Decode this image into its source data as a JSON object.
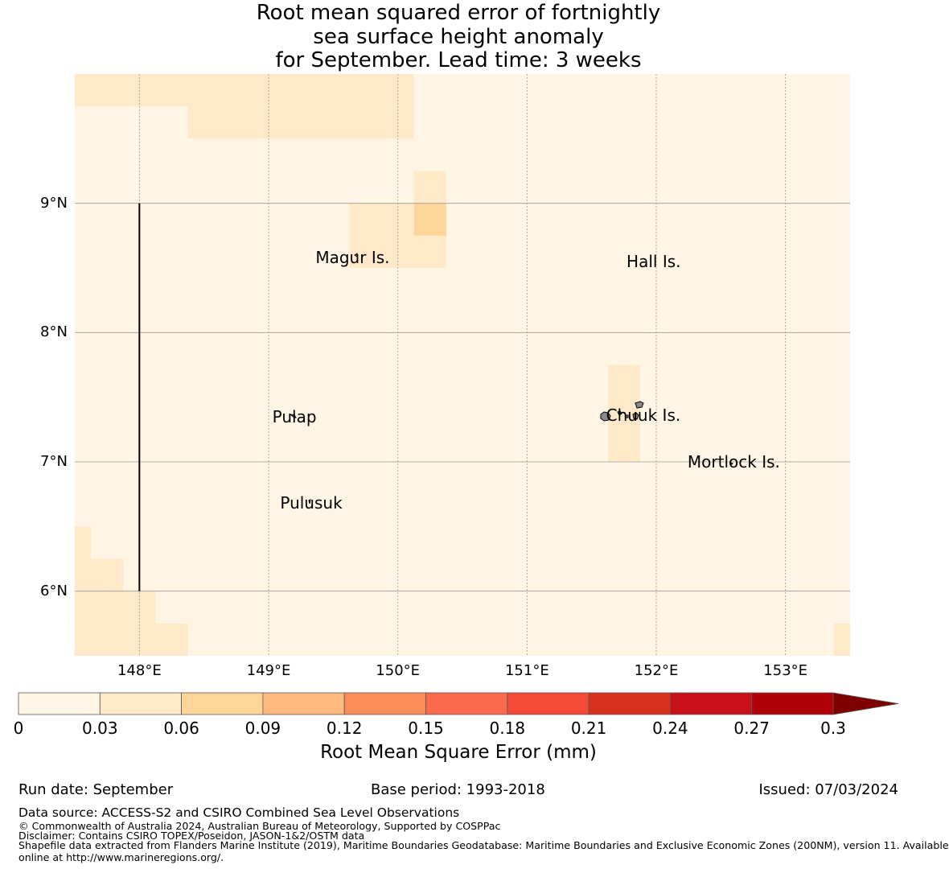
{
  "title": {
    "line1": "Root mean squared error of fortnightly",
    "line2": "sea surface height anomaly",
    "line3": "for September. Lead time: 3 weeks"
  },
  "map": {
    "lon_range": [
      147.5,
      153.5
    ],
    "lat_range": [
      5.5,
      10.0
    ],
    "lat_labels": [
      {
        "lat": 9,
        "text": "9°N"
      },
      {
        "lat": 8,
        "text": "8°N"
      },
      {
        "lat": 7,
        "text": "7°N"
      },
      {
        "lat": 6,
        "text": "6°N"
      }
    ],
    "lon_labels": [
      {
        "lon": 148,
        "text": "148°E"
      },
      {
        "lon": 149,
        "text": "149°E"
      },
      {
        "lon": 150,
        "text": "150°E"
      },
      {
        "lon": 151,
        "text": "151°E"
      },
      {
        "lon": 152,
        "text": "152°E"
      },
      {
        "lon": 153,
        "text": "153°E"
      }
    ],
    "places": [
      {
        "name": "Magur Is.",
        "lon": 149.65,
        "lat": 8.58
      },
      {
        "name": "Hall Is.",
        "lon": 151.98,
        "lat": 8.55
      },
      {
        "name": "Pulap",
        "lon": 149.2,
        "lat": 7.35
      },
      {
        "name": "Chuuk Is.",
        "lon": 151.9,
        "lat": 7.36
      },
      {
        "name": "Mortlock Is.",
        "lon": 152.6,
        "lat": 7.0
      },
      {
        "name": "Pulusuk",
        "lon": 149.33,
        "lat": 6.68
      }
    ],
    "background_rmse": 0.02,
    "rmse_cells": [
      {
        "lon": [
          147.5,
          149.0
        ],
        "lat": [
          9.75,
          10.0
        ],
        "rmse": 0.04
      },
      {
        "lon": [
          149.0,
          150.125
        ],
        "lat": [
          9.75,
          10.0
        ],
        "rmse": 0.04
      },
      {
        "lon": [
          148.375,
          150.125
        ],
        "lat": [
          9.5,
          9.75
        ],
        "rmse": 0.04
      },
      {
        "lon": [
          150.125,
          150.375
        ],
        "lat": [
          8.75,
          9.25
        ],
        "rmse": 0.04
      },
      {
        "lon": [
          150.125,
          150.375
        ],
        "lat": [
          8.75,
          9.0
        ],
        "rmse": 0.065
      },
      {
        "lon": [
          149.625,
          150.125
        ],
        "lat": [
          8.5,
          9.0
        ],
        "rmse": 0.04
      },
      {
        "lon": [
          150.125,
          150.375
        ],
        "lat": [
          8.5,
          8.75
        ],
        "rmse": 0.04
      },
      {
        "lon": [
          151.625,
          151.875
        ],
        "lat": [
          7.5,
          7.75
        ],
        "rmse": 0.04
      },
      {
        "lon": [
          151.625,
          151.875
        ],
        "lat": [
          7.25,
          7.5
        ],
        "rmse": 0.055
      },
      {
        "lon": [
          151.625,
          151.875
        ],
        "lat": [
          7.0,
          7.25
        ],
        "rmse": 0.04
      },
      {
        "lon": [
          147.5,
          147.625
        ],
        "lat": [
          6.25,
          6.5
        ],
        "rmse": 0.04
      },
      {
        "lon": [
          147.5,
          147.875
        ],
        "lat": [
          6.0,
          6.25
        ],
        "rmse": 0.04
      },
      {
        "lon": [
          147.5,
          148.125
        ],
        "lat": [
          5.75,
          6.0
        ],
        "rmse": 0.04
      },
      {
        "lon": [
          147.5,
          148.375
        ],
        "lat": [
          5.5,
          5.75
        ],
        "rmse": 0.04
      },
      {
        "lon": [
          153.375,
          153.5
        ],
        "lat": [
          5.5,
          5.75
        ],
        "rmse": 0.04
      }
    ],
    "boundary_line": {
      "lon": 148.0,
      "lat": [
        6.0,
        9.0
      ]
    }
  },
  "colorbar": {
    "title": "Root Mean Square Error (mm)",
    "ticks": [
      "0",
      "0.03",
      "0.06",
      "0.09",
      "0.12",
      "0.15",
      "0.18",
      "0.21",
      "0.24",
      "0.27",
      "0.3"
    ],
    "colors": [
      "#fff5e4",
      "#ffe9c9",
      "#fed599",
      "#fdb97e",
      "#fc8d59",
      "#fb6a4a",
      "#f34a36",
      "#d7301f",
      "#c8101a",
      "#b00007"
    ],
    "extend_color": "#7f0000"
  },
  "footer": {
    "run_date": "Run date: September",
    "base_period": "Base period: 1993-2018",
    "issued": "Issued: 07/03/2024",
    "source": "Data source: ACCESS-S2 and CSIRO Combined Sea Level Observations",
    "copyright": "© Commonwealth of Australia 2024, Australian Bureau of Meteorology, Supported by COSPPac",
    "disclaimer": "Disclaimer: Contains CSIRO TOPEX/Poseidon, JASON-1&2/OSTM data",
    "shapefile1": "Shapefile data extracted from Flanders Marine Institute (2019), Maritime Boundaries Geodatabase: Maritime Boundaries and Exclusive Economic Zones (200NM), version 11. Available",
    "shapefile2": "online at http://www.marineregions.org/."
  }
}
